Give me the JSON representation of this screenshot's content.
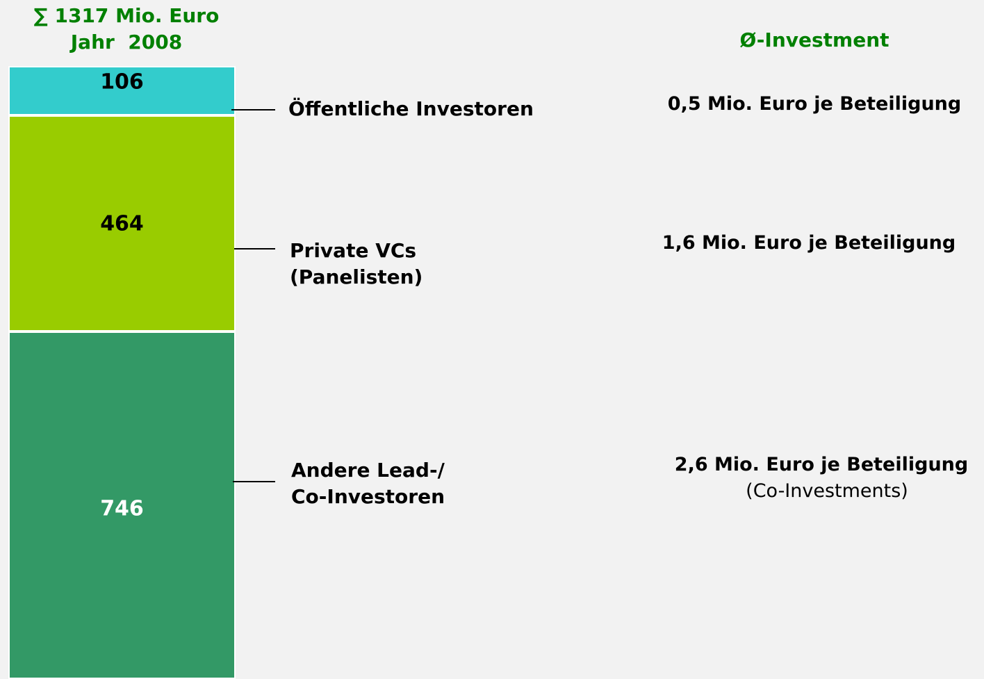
{
  "chart_data": {
    "type": "bar",
    "stacked": true,
    "title": "∑ 1317 Mio. Euro",
    "subtitle": "Jahr  2008",
    "average_header": "Ø-Investment",
    "series": [
      {
        "name": "Öffentliche Investoren",
        "color": "#33cccc",
        "label_color": "#000000",
        "values": [
          106
        ],
        "average": "0,5 Mio. Euro je Beteiligung"
      },
      {
        "name": "Private VCs\n(Panelisten)",
        "color": "#99cc00",
        "label_color": "#000000",
        "values": [
          464
        ],
        "average": "1,6 Mio. Euro je Beteiligung"
      },
      {
        "name": "Andere Lead-/\nCo-Investoren",
        "color": "#339966",
        "label_color": "#ffffff",
        "values": [
          746
        ],
        "average": "2,6 Mio. Euro je Beteiligung",
        "average_note": "(Co-Investments)"
      }
    ]
  }
}
